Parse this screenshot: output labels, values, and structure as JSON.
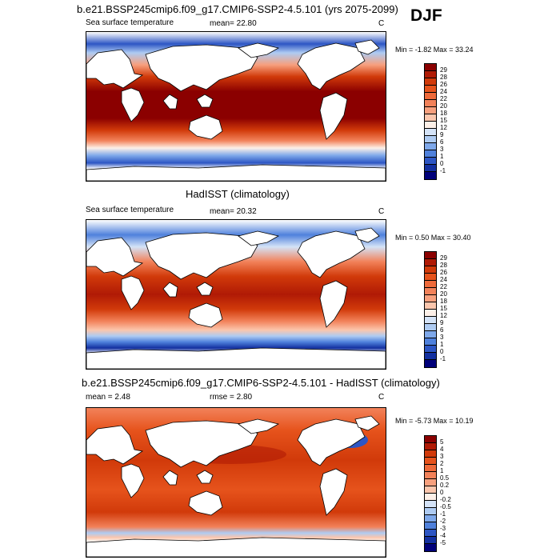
{
  "season": "DJF",
  "panels": [
    {
      "title": "b.e21.BSSP245cmip6.f09_g17.CMIP6-SSP2-4.5.101 (yrs 2075-2099)",
      "left_label": "Sea surface temperature",
      "stat_text": "mean=  22.80",
      "units": "C",
      "minmax": "Min =  -1.82 Max =  33.24",
      "colorbar": {
        "labels": [
          "29",
          "28",
          "26",
          "24",
          "22",
          "20",
          "18",
          "15",
          "12",
          "9",
          "6",
          "3",
          "1",
          "0",
          "-1"
        ],
        "colors": [
          "#8b0000",
          "#b01a05",
          "#d13a0a",
          "#e6531c",
          "#ee6a3a",
          "#f2825a",
          "#f7a07e",
          "#fbc6ad",
          "#fdf0e8",
          "#d4e3f7",
          "#aecbf2",
          "#7ea8ea",
          "#4f81dc",
          "#2d56c4",
          "#1330a0",
          "#00007a"
        ]
      }
    },
    {
      "title": "HadISST (climatology)",
      "left_label": "Sea surface temperature",
      "stat_text": "mean=  20.32",
      "units": "C",
      "minmax": "Min =   0.50 Max =  30.40",
      "colorbar": {
        "labels": [
          "29",
          "28",
          "26",
          "24",
          "22",
          "20",
          "18",
          "15",
          "12",
          "9",
          "6",
          "3",
          "1",
          "0",
          "-1"
        ],
        "colors": [
          "#8b0000",
          "#b01a05",
          "#d13a0a",
          "#e6531c",
          "#ee6a3a",
          "#f2825a",
          "#f7a07e",
          "#fbc6ad",
          "#fdf0e8",
          "#d4e3f7",
          "#aecbf2",
          "#7ea8ea",
          "#4f81dc",
          "#2d56c4",
          "#1330a0",
          "#00007a"
        ]
      }
    },
    {
      "title": "b.e21.BSSP245cmip6.f09_g17.CMIP6-SSP2-4.5.101 - HadISST (climatology)",
      "left_label": "mean =   2.48",
      "stat_text": "rmse =   2.80",
      "units": "C",
      "minmax": "Min =  -5.73 Max =  10.19",
      "colorbar": {
        "labels": [
          "5",
          "4",
          "3",
          "2",
          "1",
          "0.5",
          "0.2",
          "0",
          "-0.2",
          "-0.5",
          "-1",
          "-2",
          "-3",
          "-4",
          "-5"
        ],
        "colors": [
          "#8b0000",
          "#b01a05",
          "#d13a0a",
          "#e6531c",
          "#ee6a3a",
          "#f2825a",
          "#f7a07e",
          "#fbc6ad",
          "#fdf0e8",
          "#d4e3f7",
          "#aecbf2",
          "#7ea8ea",
          "#4f81dc",
          "#2d56c4",
          "#1330a0",
          "#00007a"
        ]
      }
    }
  ]
}
